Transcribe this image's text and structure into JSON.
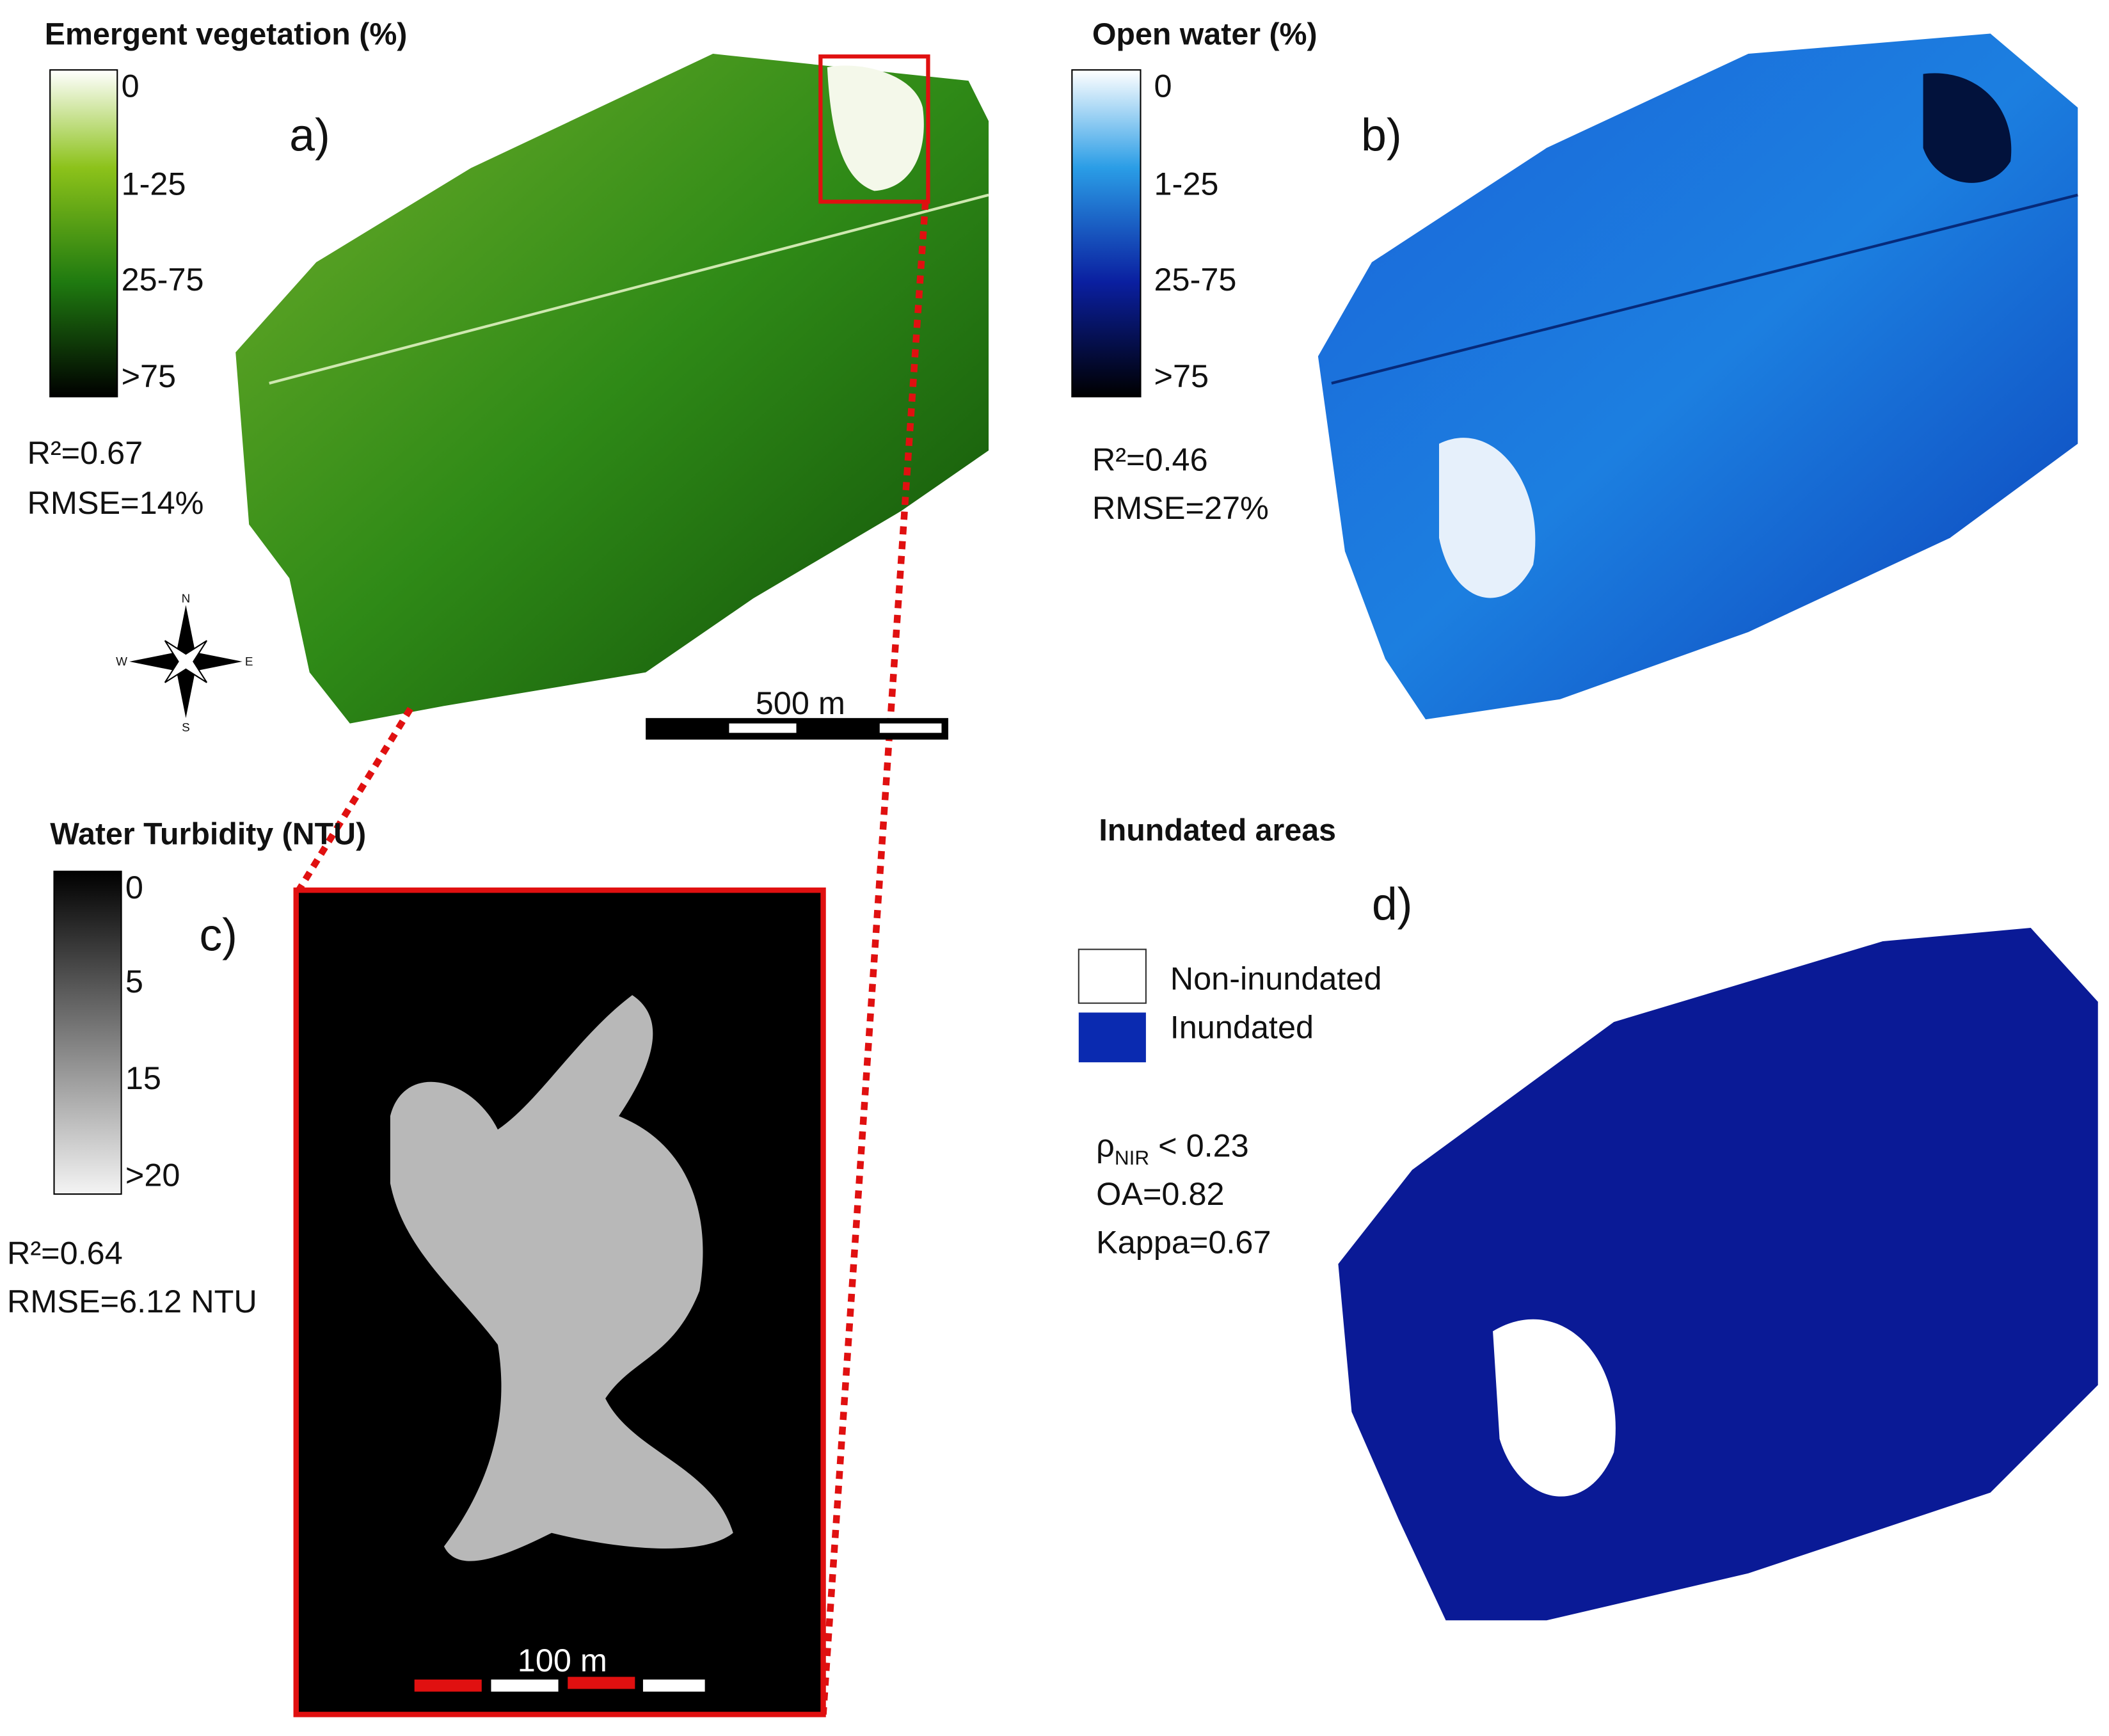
{
  "panels": [
    {
      "label": "a)",
      "title": "Emergent vegetation (%)",
      "legend": [
        "0",
        "1-25",
        "25-75",
        ">75"
      ],
      "stats": [
        "R²=0.67",
        "RMSE=14%"
      ],
      "scale_bar": "500 m",
      "compass": [
        "N",
        "E",
        "S",
        "W"
      ]
    },
    {
      "label": "b)",
      "title": "Open water (%)",
      "legend": [
        "0",
        "1-25",
        "25-75",
        ">75"
      ],
      "stats": [
        "R²=0.46",
        "RMSE=27%"
      ]
    },
    {
      "label": "c)",
      "title": "Water Turbidity (NTU)",
      "legend": [
        "0",
        "5",
        "15",
        ">20"
      ],
      "stats": [
        "R²=0.64",
        "RMSE=6.12 NTU"
      ],
      "scale_bar": "100 m"
    },
    {
      "label": "d)",
      "title": "Inundated areas",
      "legend": [
        "Non-inundated",
        "Inundated"
      ],
      "threshold": {
        "symbol": "ρ",
        "subscript": "NIR",
        "text": " < 0.23"
      },
      "stats": [
        "OA=0.82",
        "Kappa=0.67"
      ]
    }
  ]
}
